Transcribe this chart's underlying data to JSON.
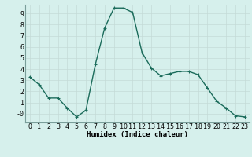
{
  "x": [
    0,
    1,
    2,
    3,
    4,
    5,
    6,
    7,
    8,
    9,
    10,
    11,
    12,
    13,
    14,
    15,
    16,
    17,
    18,
    19,
    20,
    21,
    22,
    23
  ],
  "y": [
    3.3,
    2.6,
    1.4,
    1.4,
    0.5,
    -0.3,
    0.3,
    4.4,
    7.7,
    9.5,
    9.5,
    9.1,
    5.5,
    4.1,
    3.4,
    3.6,
    3.8,
    3.8,
    3.5,
    2.3,
    1.1,
    0.5,
    -0.2,
    -0.3
  ],
  "xlabel": "Humidex (Indice chaleur)",
  "line_color": "#1a6b5a",
  "bg_color": "#d6f0ec",
  "grid_color": "#c4dbd7",
  "ylim": [
    -0.8,
    9.8
  ],
  "xlim": [
    -0.5,
    23.5
  ],
  "yticks": [
    0,
    1,
    2,
    3,
    4,
    5,
    6,
    7,
    8,
    9
  ],
  "ytick_labels": [
    "-0",
    "1",
    "2",
    "3",
    "4",
    "5",
    "6",
    "7",
    "8",
    "9"
  ],
  "xticks": [
    0,
    1,
    2,
    3,
    4,
    5,
    6,
    7,
    8,
    9,
    10,
    11,
    12,
    13,
    14,
    15,
    16,
    17,
    18,
    19,
    20,
    21,
    22,
    23
  ],
  "xlabel_fontsize": 6.5,
  "tick_fontsize": 6,
  "marker_size": 2.5,
  "line_width": 1.0
}
